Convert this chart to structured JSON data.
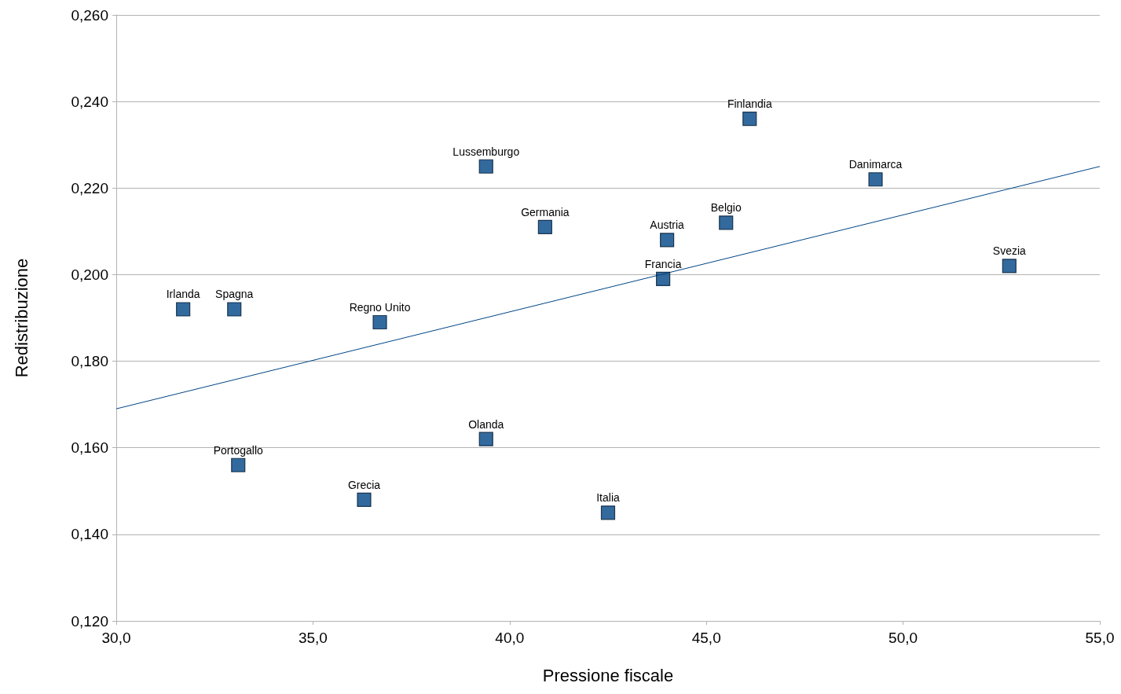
{
  "chart_data": {
    "type": "scatter",
    "xlabel": "Pressione fiscale",
    "ylabel": "Redistribuzione",
    "xlim": [
      30,
      55
    ],
    "xticks": [
      {
        "value": 30,
        "label": "30,0"
      },
      {
        "value": 35,
        "label": "35,0"
      },
      {
        "value": 40,
        "label": "40,0"
      },
      {
        "value": 45,
        "label": "45,0"
      },
      {
        "value": 50,
        "label": "50,0"
      },
      {
        "value": 55,
        "label": "55,0"
      }
    ],
    "ylim": [
      0.12,
      0.26
    ],
    "yticks": [
      {
        "value": 0.12,
        "label": "0,120"
      },
      {
        "value": 0.14,
        "label": "0,140"
      },
      {
        "value": 0.16,
        "label": "0,160"
      },
      {
        "value": 0.18,
        "label": "0,180"
      },
      {
        "value": 0.2,
        "label": "0,200"
      },
      {
        "value": 0.22,
        "label": "0,220"
      },
      {
        "value": 0.24,
        "label": "0,240"
      },
      {
        "value": 0.26,
        "label": "0,260"
      }
    ],
    "grid": "y",
    "series": [
      {
        "marker": "square",
        "color": "#004586",
        "x": [
          31.7,
          33.0,
          33.1,
          36.3,
          36.7,
          39.4,
          39.4,
          40.9,
          42.5,
          43.9,
          44.0,
          45.5,
          46.1,
          49.3,
          52.7
        ],
        "values": [
          0.192,
          0.192,
          0.156,
          0.148,
          0.189,
          0.225,
          0.162,
          0.211,
          0.145,
          0.199,
          0.208,
          0.212,
          0.236,
          0.222,
          0.202
        ]
      },
      {
        "type": "line",
        "marker": "none",
        "color": "#004586",
        "x": [
          30,
          55
        ],
        "values": [
          0.169,
          0.225
        ]
      }
    ],
    "annotations": [
      {
        "text": "Irlanda",
        "x": 31.7,
        "y": 0.192
      },
      {
        "text": "Spagna",
        "x": 33.0,
        "y": 0.192
      },
      {
        "text": "Portogallo",
        "x": 33.1,
        "y": 0.156
      },
      {
        "text": "Grecia",
        "x": 36.3,
        "y": 0.148
      },
      {
        "text": "Regno Unito",
        "x": 36.7,
        "y": 0.189
      },
      {
        "text": "Lussemburgo",
        "x": 39.4,
        "y": 0.225
      },
      {
        "text": "Olanda",
        "x": 39.4,
        "y": 0.162
      },
      {
        "text": "Germania",
        "x": 40.9,
        "y": 0.211
      },
      {
        "text": "Italia",
        "x": 42.5,
        "y": 0.145
      },
      {
        "text": "Francia",
        "x": 43.9,
        "y": 0.199
      },
      {
        "text": "Austria",
        "x": 44.0,
        "y": 0.208
      },
      {
        "text": "Belgio",
        "x": 45.5,
        "y": 0.212
      },
      {
        "text": "Finlandia",
        "x": 46.1,
        "y": 0.236
      },
      {
        "text": "Danimarca",
        "x": 49.3,
        "y": 0.222
      },
      {
        "text": "Svezia",
        "x": 52.7,
        "y": 0.202
      }
    ]
  }
}
